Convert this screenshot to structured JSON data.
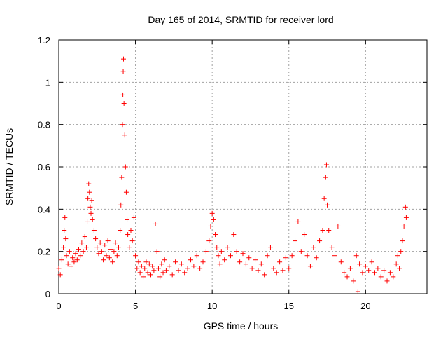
{
  "chart_data": {
    "type": "scatter",
    "title": "Day 165 of 2014, SRMTID for receiver lord",
    "xlabel": "GPS time / hours",
    "ylabel": "SRMTID / TECUs",
    "xlim": [
      0,
      24
    ],
    "ylim": [
      0,
      1.2
    ],
    "xticks": [
      0,
      5,
      10,
      15,
      20
    ],
    "yticks": [
      0,
      0.2,
      0.4,
      0.6,
      0.8,
      1,
      1.2
    ],
    "xtick_labels": [
      "0",
      "5",
      "10",
      "15",
      "20"
    ],
    "ytick_labels": [
      "0",
      "0.2",
      "0.4",
      "0.6",
      "0.8",
      "1",
      "1.2"
    ],
    "grid": true,
    "marker": "+",
    "series": [
      {
        "name": "SRMTID",
        "color": "#ff0000",
        "points": [
          [
            0.0,
            0.12
          ],
          [
            0.1,
            0.09
          ],
          [
            0.2,
            0.16
          ],
          [
            0.3,
            0.22
          ],
          [
            0.35,
            0.3
          ],
          [
            0.4,
            0.36
          ],
          [
            0.45,
            0.26
          ],
          [
            0.5,
            0.18
          ],
          [
            0.6,
            0.14
          ],
          [
            0.7,
            0.2
          ],
          [
            0.8,
            0.13
          ],
          [
            0.9,
            0.17
          ],
          [
            1.0,
            0.15
          ],
          [
            1.1,
            0.19
          ],
          [
            1.2,
            0.16
          ],
          [
            1.3,
            0.21
          ],
          [
            1.4,
            0.18
          ],
          [
            1.5,
            0.24
          ],
          [
            1.6,
            0.2
          ],
          [
            1.7,
            0.27
          ],
          [
            1.8,
            0.22
          ],
          [
            1.85,
            0.34
          ],
          [
            1.9,
            0.45
          ],
          [
            1.95,
            0.52
          ],
          [
            2.0,
            0.48
          ],
          [
            2.05,
            0.41
          ],
          [
            2.1,
            0.38
          ],
          [
            2.15,
            0.44
          ],
          [
            2.2,
            0.35
          ],
          [
            2.3,
            0.3
          ],
          [
            2.4,
            0.26
          ],
          [
            2.5,
            0.22
          ],
          [
            2.6,
            0.19
          ],
          [
            2.7,
            0.24
          ],
          [
            2.8,
            0.2
          ],
          [
            2.9,
            0.16
          ],
          [
            3.0,
            0.23
          ],
          [
            3.1,
            0.18
          ],
          [
            3.2,
            0.25
          ],
          [
            3.3,
            0.17
          ],
          [
            3.4,
            0.21
          ],
          [
            3.5,
            0.15
          ],
          [
            3.6,
            0.2
          ],
          [
            3.7,
            0.24
          ],
          [
            3.8,
            0.18
          ],
          [
            3.9,
            0.22
          ],
          [
            4.0,
            0.3
          ],
          [
            4.05,
            0.42
          ],
          [
            4.1,
            0.55
          ],
          [
            4.15,
            0.8
          ],
          [
            4.18,
            0.94
          ],
          [
            4.2,
            1.05
          ],
          [
            4.22,
            1.11
          ],
          [
            4.25,
            0.9
          ],
          [
            4.3,
            0.75
          ],
          [
            4.35,
            0.6
          ],
          [
            4.4,
            0.48
          ],
          [
            4.45,
            0.35
          ],
          [
            4.5,
            0.28
          ],
          [
            4.6,
            0.22
          ],
          [
            4.7,
            0.3
          ],
          [
            4.8,
            0.25
          ],
          [
            4.9,
            0.36
          ],
          [
            5.0,
            0.18
          ],
          [
            5.1,
            0.12
          ],
          [
            5.2,
            0.15
          ],
          [
            5.3,
            0.1
          ],
          [
            5.4,
            0.13
          ],
          [
            5.5,
            0.08
          ],
          [
            5.6,
            0.12
          ],
          [
            5.7,
            0.15
          ],
          [
            5.8,
            0.1
          ],
          [
            5.9,
            0.14
          ],
          [
            6.0,
            0.09
          ],
          [
            6.1,
            0.13
          ],
          [
            6.2,
            0.11
          ],
          [
            6.3,
            0.33
          ],
          [
            6.4,
            0.2
          ],
          [
            6.5,
            0.12
          ],
          [
            6.6,
            0.08
          ],
          [
            6.7,
            0.14
          ],
          [
            6.8,
            0.1
          ],
          [
            6.9,
            0.16
          ],
          [
            7.0,
            0.11
          ],
          [
            7.2,
            0.13
          ],
          [
            7.4,
            0.09
          ],
          [
            7.6,
            0.15
          ],
          [
            7.8,
            0.11
          ],
          [
            8.0,
            0.14
          ],
          [
            8.2,
            0.1
          ],
          [
            8.4,
            0.12
          ],
          [
            8.6,
            0.16
          ],
          [
            8.8,
            0.13
          ],
          [
            9.0,
            0.18
          ],
          [
            9.2,
            0.12
          ],
          [
            9.4,
            0.15
          ],
          [
            9.6,
            0.2
          ],
          [
            9.8,
            0.25
          ],
          [
            9.9,
            0.32
          ],
          [
            10.0,
            0.38
          ],
          [
            10.1,
            0.35
          ],
          [
            10.2,
            0.28
          ],
          [
            10.3,
            0.22
          ],
          [
            10.4,
            0.18
          ],
          [
            10.5,
            0.14
          ],
          [
            10.6,
            0.2
          ],
          [
            10.8,
            0.16
          ],
          [
            11.0,
            0.22
          ],
          [
            11.2,
            0.18
          ],
          [
            11.4,
            0.28
          ],
          [
            11.6,
            0.2
          ],
          [
            11.8,
            0.15
          ],
          [
            12.0,
            0.19
          ],
          [
            12.2,
            0.14
          ],
          [
            12.4,
            0.17
          ],
          [
            12.6,
            0.12
          ],
          [
            12.8,
            0.16
          ],
          [
            13.0,
            0.11
          ],
          [
            13.2,
            0.14
          ],
          [
            13.4,
            0.09
          ],
          [
            13.6,
            0.18
          ],
          [
            13.8,
            0.22
          ],
          [
            14.0,
            0.12
          ],
          [
            14.2,
            0.1
          ],
          [
            14.4,
            0.15
          ],
          [
            14.6,
            0.11
          ],
          [
            14.8,
            0.17
          ],
          [
            15.0,
            0.12
          ],
          [
            15.2,
            0.18
          ],
          [
            15.4,
            0.25
          ],
          [
            15.6,
            0.34
          ],
          [
            15.8,
            0.2
          ],
          [
            16.0,
            0.28
          ],
          [
            16.2,
            0.18
          ],
          [
            16.4,
            0.13
          ],
          [
            16.6,
            0.22
          ],
          [
            16.8,
            0.17
          ],
          [
            17.0,
            0.25
          ],
          [
            17.2,
            0.3
          ],
          [
            17.3,
            0.45
          ],
          [
            17.4,
            0.55
          ],
          [
            17.45,
            0.61
          ],
          [
            17.5,
            0.42
          ],
          [
            17.6,
            0.3
          ],
          [
            17.8,
            0.22
          ],
          [
            18.0,
            0.18
          ],
          [
            18.2,
            0.32
          ],
          [
            18.4,
            0.15
          ],
          [
            18.6,
            0.1
          ],
          [
            18.8,
            0.08
          ],
          [
            19.0,
            0.12
          ],
          [
            19.2,
            0.06
          ],
          [
            19.4,
            0.18
          ],
          [
            19.5,
            0.01
          ],
          [
            19.6,
            0.14
          ],
          [
            19.8,
            0.1
          ],
          [
            20.0,
            0.13
          ],
          [
            20.2,
            0.11
          ],
          [
            20.4,
            0.15
          ],
          [
            20.6,
            0.1
          ],
          [
            20.8,
            0.12
          ],
          [
            21.0,
            0.08
          ],
          [
            21.2,
            0.11
          ],
          [
            21.4,
            0.06
          ],
          [
            21.6,
            0.1
          ],
          [
            21.8,
            0.08
          ],
          [
            22.0,
            0.14
          ],
          [
            22.1,
            0.18
          ],
          [
            22.2,
            0.12
          ],
          [
            22.3,
            0.2
          ],
          [
            22.4,
            0.25
          ],
          [
            22.5,
            0.32
          ],
          [
            22.6,
            0.41
          ],
          [
            22.65,
            0.36
          ]
        ]
      }
    ]
  }
}
